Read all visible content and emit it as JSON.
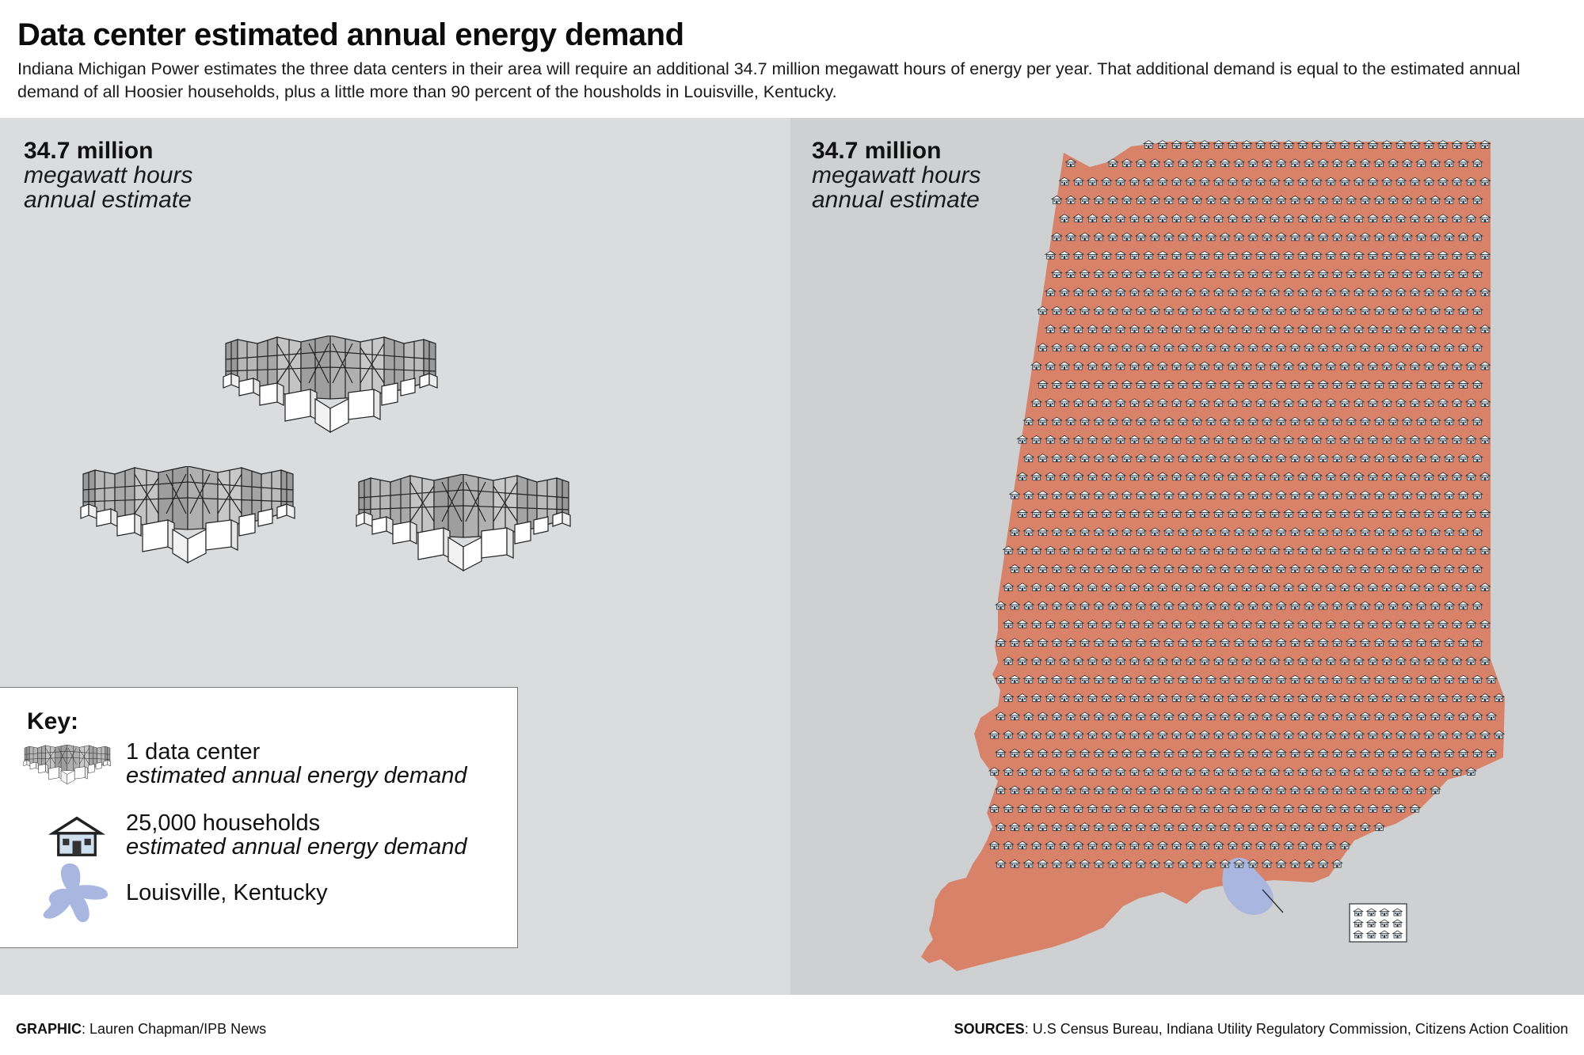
{
  "header": {
    "title": "Data center estimated annual energy demand",
    "description": "Indiana Michigan Power estimates the three data centers in their area will require an additional 34.7 million megawatt hours of energy per year. That additional demand is equal to the estimated annual demand of all Hoosier households, plus a little more than 90 percent of the housholds in Louisville, Kentucky."
  },
  "left_panel": {
    "stat_value": "34.7 million",
    "stat_unit": "megawatt hours",
    "stat_sub": "annual estimate",
    "data_center_count": 3
  },
  "right_panel": {
    "stat_value": "34.7 million",
    "stat_unit": "megawatt hours",
    "stat_sub": "annual estimate"
  },
  "key": {
    "title": "Key:",
    "items": [
      {
        "icon": "data-center-icon",
        "label": "1 data center",
        "sublabel": "estimated annual energy demand"
      },
      {
        "icon": "house-icon",
        "label": "25,000 households",
        "sublabel": "estimated annual energy demand"
      },
      {
        "icon": "louisville-shape-icon",
        "label": "Louisville, Kentucky",
        "sublabel": ""
      }
    ]
  },
  "footer": {
    "graphic_label": "GRAPHIC",
    "graphic_value": ": Lauren Chapman/IPB News",
    "sources_label": "SOURCES",
    "sources_value": ": U.S Census Bureau, Indiana Utility Regulatory Commission, Citizens Action Coalition"
  },
  "colors": {
    "indiana_fill": "#d9826a",
    "louisville_fill": "#a9b7e0",
    "left_bg": "#dbdcde",
    "right_bg": "#cfd0d2"
  }
}
